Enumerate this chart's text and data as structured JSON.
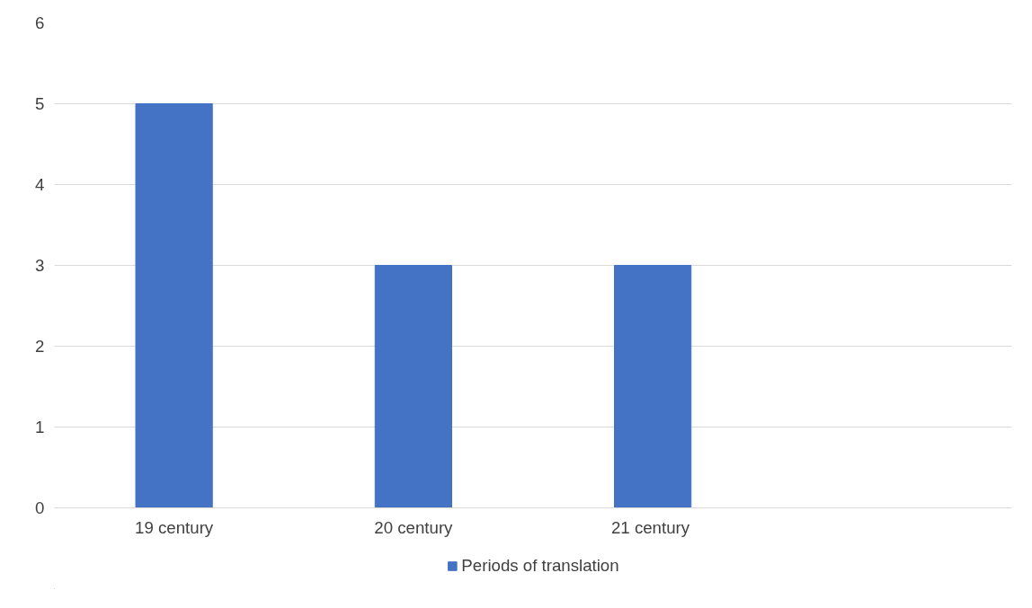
{
  "chart_data": {
    "type": "bar",
    "categories": [
      "19 century",
      "20 century",
      "21  century",
      null
    ],
    "series": [
      {
        "name": "Periods of translation",
        "color": "#4472c4",
        "values": [
          5,
          3,
          3,
          null
        ]
      }
    ],
    "ylim": [
      0,
      6
    ],
    "yticks": [
      0,
      1,
      2,
      3,
      4,
      5,
      6
    ],
    "grid": "y",
    "legend": "bottom"
  }
}
